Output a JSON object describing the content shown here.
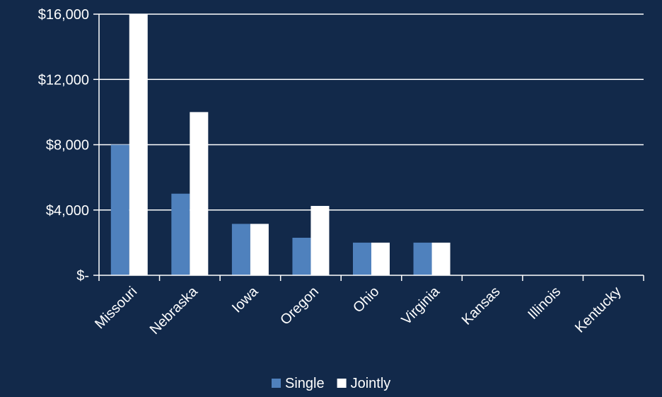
{
  "chart_data": {
    "type": "bar",
    "title": "",
    "xlabel": "",
    "ylabel": "",
    "categories": [
      "Missouri",
      "Nebraska",
      "Iowa",
      "Oregon",
      "Ohio",
      "Virginia",
      "Kansas",
      "Illinois",
      "Kentucky"
    ],
    "series": [
      {
        "name": "Single",
        "color": "#4f81bd",
        "values": [
          8000,
          5000,
          3150,
          2300,
          2000,
          2000,
          0,
          0,
          0
        ]
      },
      {
        "name": "Jointly",
        "color": "#ffffff",
        "values": [
          16000,
          10000,
          3150,
          4250,
          2000,
          2000,
          0,
          0,
          0
        ]
      }
    ],
    "ylim": [
      0,
      16000
    ],
    "yticks": [
      0,
      4000,
      8000,
      12000,
      16000
    ],
    "ytick_labels": [
      "$-",
      "$4,000",
      "$8,000",
      "$12,000",
      "$16,000"
    ],
    "grid": true,
    "legend": "bottom-center",
    "colors": {
      "background": "#12294a",
      "gridline": "#ffffff",
      "text": "#ffffff"
    }
  }
}
